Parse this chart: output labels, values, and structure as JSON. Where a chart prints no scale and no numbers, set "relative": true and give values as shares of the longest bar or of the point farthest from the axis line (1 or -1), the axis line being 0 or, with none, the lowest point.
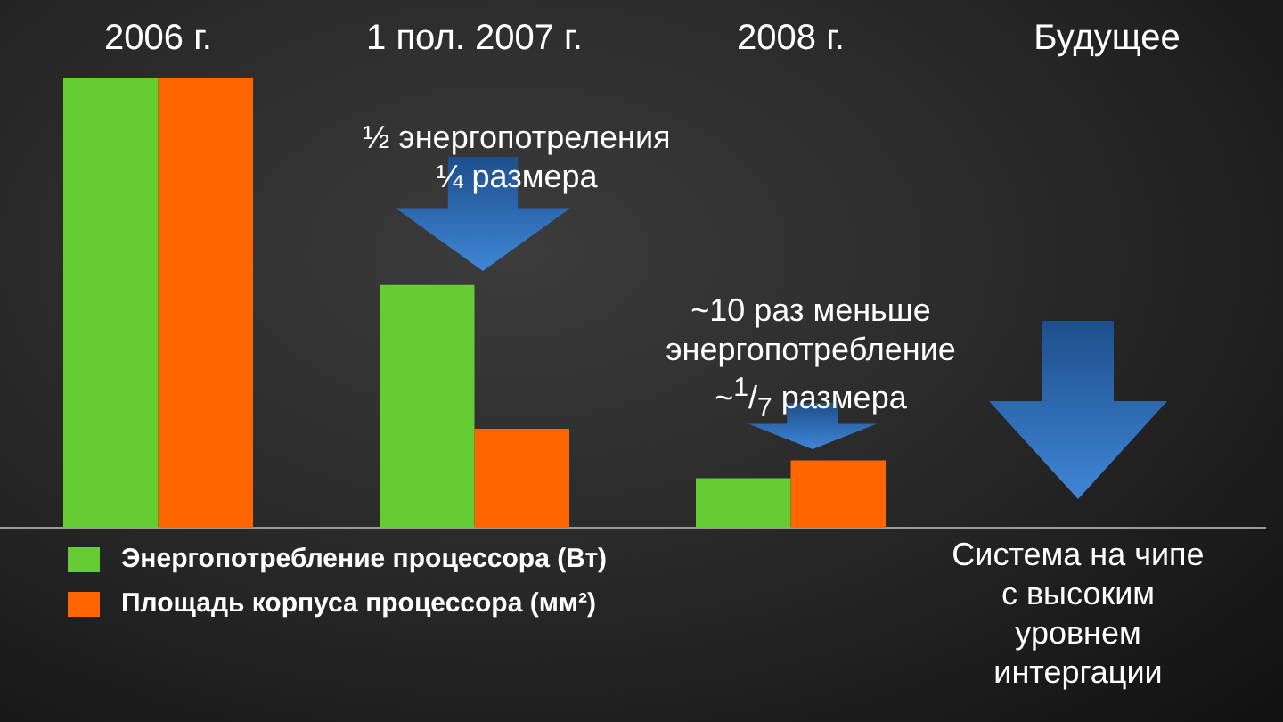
{
  "chart_data": {
    "type": "bar",
    "relative": true,
    "categories": [
      "2006 г.",
      "1 пол. 2007 г.",
      "2008 г.",
      "Будущее"
    ],
    "series": [
      {
        "name": "Энергопотребление процессора (Вт)",
        "color": "#66cc33",
        "values": [
          1,
          0.54,
          0.11,
          null
        ]
      },
      {
        "name": "Площадь корпуса процессора (мм²)",
        "color": "#ff6600",
        "values": [
          1,
          0.22,
          0.15,
          null
        ]
      }
    ],
    "annotations": [
      "½ энергопотреления\n¼ размера",
      "~10 раз меньше\nэнергопотребление\n~$^{1}$/$_{7}$ размера",
      "Система на чипе\nс высоким\nуровнем\nинтергации"
    ],
    "legend": "bottom left",
    "grid": false
  }
}
